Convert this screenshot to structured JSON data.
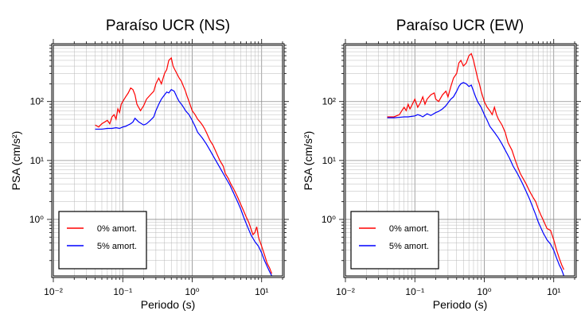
{
  "chart_data": [
    {
      "type": "line",
      "title": "Paraíso UCR (NS)",
      "xlabel": "Periodo (s)",
      "ylabel": "PSA (cm/s²)",
      "xscale": "log",
      "yscale": "log",
      "xlim": [
        0.01,
        20
      ],
      "ylim": [
        0.11,
        900
      ],
      "grid": true,
      "legend_position": "bottom-left",
      "x_tick_labels": [
        "10⁻²",
        "10⁻¹",
        "10⁰",
        "10¹"
      ],
      "y_tick_labels": [
        "10⁰",
        "10¹",
        "10²"
      ],
      "series": [
        {
          "name": "0% amort.",
          "color": "#ff0000",
          "x": [
            0.04,
            0.045,
            0.05,
            0.055,
            0.06,
            0.065,
            0.07,
            0.075,
            0.08,
            0.085,
            0.09,
            0.095,
            0.1,
            0.11,
            0.12,
            0.13,
            0.14,
            0.15,
            0.16,
            0.18,
            0.2,
            0.22,
            0.25,
            0.28,
            0.3,
            0.33,
            0.36,
            0.4,
            0.43,
            0.46,
            0.5,
            0.53,
            0.56,
            0.6,
            0.65,
            0.7,
            0.75,
            0.8,
            0.85,
            0.9,
            1.0,
            1.1,
            1.2,
            1.3,
            1.4,
            1.5,
            1.6,
            1.8,
            2.0,
            2.2,
            2.5,
            2.8,
            3.0,
            3.3,
            3.6,
            4.0,
            4.5,
            5.0,
            5.5,
            6.0,
            6.5,
            7.0,
            7.5,
            8.0,
            8.5,
            9.0,
            10.0,
            11.0,
            12.0,
            13.0,
            14.0
          ],
          "values": [
            40,
            37,
            42,
            45,
            48,
            42,
            55,
            60,
            50,
            75,
            65,
            90,
            100,
            120,
            140,
            170,
            160,
            130,
            90,
            70,
            85,
            110,
            130,
            150,
            200,
            250,
            200,
            300,
            350,
            500,
            550,
            400,
            350,
            300,
            250,
            220,
            180,
            150,
            120,
            100,
            70,
            60,
            50,
            45,
            40,
            35,
            30,
            22,
            18,
            14,
            10,
            8,
            6,
            5,
            4,
            3.2,
            2.4,
            1.8,
            1.4,
            1.1,
            0.9,
            0.7,
            0.55,
            0.6,
            0.75,
            0.5,
            0.35,
            0.25,
            0.18,
            0.15,
            0.12
          ]
        },
        {
          "name": "5% amort.",
          "color": "#0000ff",
          "x": [
            0.04,
            0.05,
            0.06,
            0.07,
            0.08,
            0.09,
            0.1,
            0.11,
            0.12,
            0.13,
            0.14,
            0.15,
            0.17,
            0.2,
            0.22,
            0.25,
            0.28,
            0.3,
            0.33,
            0.36,
            0.4,
            0.43,
            0.46,
            0.5,
            0.55,
            0.6,
            0.65,
            0.7,
            0.75,
            0.8,
            0.9,
            1.0,
            1.1,
            1.2,
            1.4,
            1.6,
            1.8,
            2.0,
            2.3,
            2.6,
            3.0,
            3.5,
            4.0,
            4.5,
            5.0,
            5.5,
            6.0,
            7.0,
            8.0,
            9.0,
            10.0,
            11.0,
            12.0,
            13.0,
            14.0
          ],
          "values": [
            34,
            34,
            35,
            35,
            36,
            35,
            37,
            38,
            40,
            42,
            45,
            52,
            45,
            40,
            42,
            48,
            55,
            70,
            90,
            110,
            130,
            145,
            140,
            160,
            150,
            120,
            100,
            90,
            80,
            70,
            60,
            48,
            38,
            30,
            24,
            19,
            15,
            12,
            9,
            7,
            5.2,
            3.8,
            2.7,
            2.0,
            1.5,
            1.1,
            0.85,
            0.55,
            0.42,
            0.35,
            0.27,
            0.2,
            0.16,
            0.13,
            0.11
          ]
        }
      ]
    },
    {
      "type": "line",
      "title": "Paraíso UCR (EW)",
      "xlabel": "Periodo (s)",
      "ylabel": "PSA (cm/s²)",
      "xscale": "log",
      "yscale": "log",
      "xlim": [
        0.01,
        20
      ],
      "ylim": [
        0.11,
        900
      ],
      "grid": true,
      "legend_position": "bottom-left",
      "x_tick_labels": [
        "10⁻²",
        "10⁻¹",
        "10⁰",
        "10¹"
      ],
      "y_tick_labels": [
        "10⁰",
        "10¹",
        "10²"
      ],
      "series": [
        {
          "name": "0% amort.",
          "color": "#ff0000",
          "x": [
            0.04,
            0.05,
            0.06,
            0.065,
            0.07,
            0.075,
            0.08,
            0.085,
            0.09,
            0.1,
            0.11,
            0.12,
            0.13,
            0.14,
            0.15,
            0.17,
            0.19,
            0.2,
            0.22,
            0.25,
            0.28,
            0.3,
            0.33,
            0.36,
            0.4,
            0.43,
            0.46,
            0.5,
            0.55,
            0.6,
            0.65,
            0.7,
            0.75,
            0.8,
            0.85,
            0.9,
            1.0,
            1.1,
            1.2,
            1.3,
            1.4,
            1.5,
            1.6,
            1.8,
            2.0,
            2.2,
            2.5,
            2.8,
            3.0,
            3.3,
            3.6,
            4.0,
            4.5,
            5.0,
            5.5,
            6.0,
            6.5,
            7.0,
            8.0,
            9.0,
            10.0,
            11.0,
            12.0,
            13.0,
            14.0
          ],
          "values": [
            55,
            55,
            60,
            70,
            80,
            70,
            90,
            75,
            85,
            110,
            80,
            95,
            120,
            90,
            110,
            130,
            140,
            110,
            100,
            130,
            150,
            120,
            180,
            250,
            300,
            450,
            500,
            400,
            450,
            600,
            650,
            500,
            350,
            250,
            200,
            150,
            100,
            80,
            70,
            60,
            80,
            60,
            50,
            40,
            30,
            20,
            15,
            10,
            8,
            6,
            5,
            4,
            3,
            2.4,
            2.0,
            1.5,
            1.2,
            1.0,
            0.7,
            0.65,
            0.45,
            0.3,
            0.22,
            0.17,
            0.14
          ]
        },
        {
          "name": "5% amort.",
          "color": "#0000ff",
          "x": [
            0.04,
            0.05,
            0.06,
            0.07,
            0.08,
            0.09,
            0.1,
            0.11,
            0.12,
            0.13,
            0.15,
            0.17,
            0.2,
            0.22,
            0.25,
            0.28,
            0.3,
            0.33,
            0.36,
            0.4,
            0.43,
            0.46,
            0.5,
            0.55,
            0.6,
            0.65,
            0.7,
            0.75,
            0.8,
            0.9,
            1.0,
            1.1,
            1.2,
            1.4,
            1.6,
            1.8,
            2.0,
            2.3,
            2.6,
            3.0,
            3.5,
            4.0,
            4.5,
            5.0,
            5.5,
            6.0,
            7.0,
            8.0,
            9.0,
            10.0,
            11.0,
            12.0,
            13.0,
            14.0
          ],
          "values": [
            53,
            53,
            54,
            55,
            55,
            56,
            57,
            60,
            58,
            55,
            62,
            58,
            65,
            68,
            75,
            85,
            95,
            110,
            120,
            150,
            180,
            200,
            210,
            200,
            180,
            190,
            150,
            120,
            100,
            80,
            60,
            48,
            38,
            30,
            24,
            19,
            15,
            11,
            8,
            6,
            4.2,
            3.0,
            2.2,
            1.6,
            1.2,
            0.9,
            0.6,
            0.45,
            0.38,
            0.3,
            0.22,
            0.17,
            0.14,
            0.11
          ]
        }
      ]
    }
  ]
}
